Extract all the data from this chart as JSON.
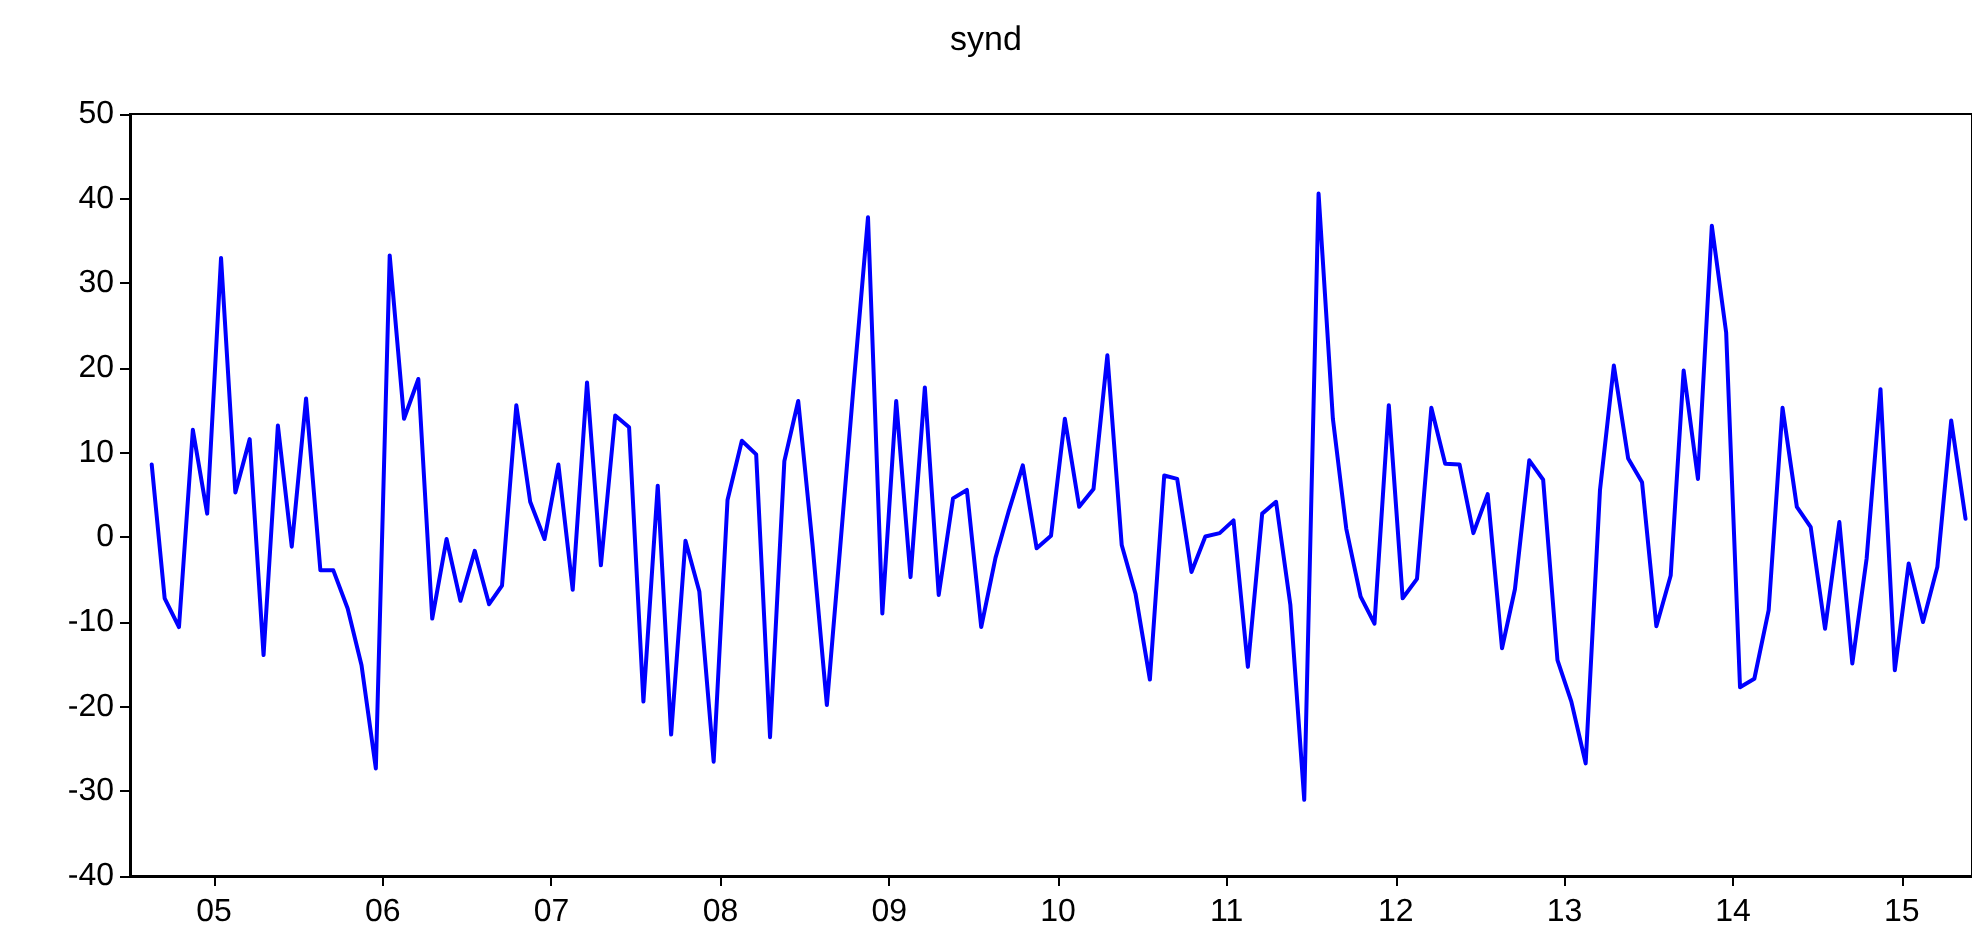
{
  "chart_data": {
    "type": "line",
    "title": "synd",
    "x": [
      "2005-02",
      "2005-03",
      "2005-04",
      "2005-05",
      "2005-06",
      "2005-07",
      "2005-08",
      "2005-09",
      "2005-10",
      "2005-11",
      "2005-12",
      "2006-01",
      "2006-02",
      "2006-03",
      "2006-04",
      "2006-05",
      "2006-06",
      "2006-07",
      "2006-08",
      "2006-09",
      "2006-10",
      "2006-11",
      "2006-12",
      "2007-01",
      "2007-02",
      "2007-03",
      "2007-04",
      "2007-05",
      "2007-06",
      "2007-07",
      "2007-08",
      "2007-09",
      "2007-10",
      "2007-11",
      "2007-12",
      "2008-01",
      "2008-02",
      "2008-03",
      "2008-04",
      "2008-05",
      "2008-06",
      "2008-07",
      "2008-08",
      "2008-09",
      "2008-10",
      "2008-11",
      "2008-12",
      "2009-01",
      "2009-02",
      "2009-03",
      "2009-04",
      "2009-05",
      "2009-06",
      "2009-07",
      "2009-08",
      "2009-09",
      "2009-10",
      "2009-11",
      "2009-12",
      "2010-01",
      "2010-02",
      "2010-03",
      "2010-04",
      "2010-05",
      "2010-06",
      "2010-07",
      "2010-08",
      "2010-09",
      "2010-10",
      "2010-11",
      "2010-12",
      "2011-01",
      "2011-02",
      "2011-03",
      "2011-04",
      "2011-05",
      "2011-06",
      "2011-07",
      "2011-08",
      "2011-09",
      "2011-10",
      "2011-11",
      "2011-12",
      "2012-01",
      "2012-02",
      "2012-03",
      "2012-04",
      "2012-05",
      "2012-06",
      "2012-07",
      "2012-08",
      "2012-09",
      "2012-10",
      "2012-11",
      "2012-12",
      "2013-01",
      "2013-02",
      "2013-03",
      "2013-04",
      "2013-05",
      "2013-06",
      "2013-07",
      "2013-08",
      "2013-09",
      "2013-10",
      "2013-11",
      "2013-12",
      "2014-01",
      "2014-02",
      "2014-03",
      "2014-04",
      "2014-05",
      "2014-06",
      "2014-07",
      "2014-08",
      "2014-09",
      "2014-10",
      "2014-11",
      "2014-12",
      "2015-01",
      "2015-02",
      "2015-03",
      "2015-04",
      "2015-05",
      "2015-06",
      "2015-07",
      "2015-08",
      "2015-09",
      "2015-10",
      "2015-11"
    ],
    "series": [
      {
        "color": "#0000ff",
        "values": [
          8.6,
          -7.2,
          -10.6,
          12.7,
          2.8,
          33.0,
          5.3,
          11.6,
          -13.9,
          13.2,
          -1.1,
          16.4,
          -3.9,
          -3.9,
          -8.4,
          -15.1,
          -27.3,
          33.3,
          14.0,
          18.7,
          -9.6,
          -0.2,
          -7.5,
          -1.6,
          -7.9,
          -5.7,
          15.6,
          4.2,
          -0.2,
          8.6,
          -6.2,
          18.3,
          -3.3,
          14.4,
          13.0,
          -19.4,
          6.1,
          -23.3,
          -0.4,
          -6.4,
          -26.5,
          4.4,
          11.4,
          9.8,
          -23.6,
          9.0,
          16.1,
          -0.9,
          -19.8,
          -1.7,
          18.7,
          37.8,
          -9.0,
          16.1,
          -4.7,
          17.7,
          -6.8,
          4.6,
          5.6,
          -10.6,
          -2.4,
          3.0,
          8.5,
          -1.3,
          0.2,
          14.0,
          3.6,
          5.7,
          21.5,
          -0.9,
          -6.7,
          -16.8,
          7.3,
          6.9,
          -4.1,
          0.1,
          0.5,
          2.0,
          -15.3,
          2.8,
          4.2,
          -8.0,
          -31.0,
          40.6,
          14.0,
          1.0,
          -7.0,
          -10.2,
          15.6,
          -7.2,
          -4.9,
          15.3,
          8.7,
          8.6,
          0.5,
          5.1,
          -13.1,
          -6.1,
          9.1,
          6.8,
          -14.5,
          -19.4,
          -26.7,
          5.6,
          20.3,
          9.3,
          6.5,
          -10.5,
          -4.5,
          19.7,
          6.9,
          36.8,
          24.2,
          -17.7,
          -16.7,
          -8.6,
          15.3,
          3.6,
          1.2,
          -10.8,
          1.8,
          -14.9,
          -2.5,
          17.5,
          -15.7,
          -3.1,
          -10.0,
          -3.5,
          13.8,
          2.2
        ]
      }
    ],
    "xlim": [
      "2004-12-16",
      "2015-11-15"
    ],
    "xticks": [
      {
        "value": "2005-06-16",
        "label": "05"
      },
      {
        "value": "2006-06-16",
        "label": "06"
      },
      {
        "value": "2007-06-16",
        "label": "07"
      },
      {
        "value": "2008-06-16",
        "label": "08"
      },
      {
        "value": "2009-06-16",
        "label": "09"
      },
      {
        "value": "2010-06-16",
        "label": "10"
      },
      {
        "value": "2011-06-16",
        "label": "11"
      },
      {
        "value": "2012-06-16",
        "label": "12"
      },
      {
        "value": "2013-06-16",
        "label": "13"
      },
      {
        "value": "2014-06-16",
        "label": "14"
      },
      {
        "value": "2015-06-16",
        "label": "15"
      }
    ],
    "ylim": [
      -40,
      50
    ],
    "yticks": [
      -40,
      -30,
      -20,
      -10,
      0,
      10,
      20,
      30,
      40,
      50
    ],
    "grid": false,
    "marker": "none",
    "line_style": "solid"
  }
}
